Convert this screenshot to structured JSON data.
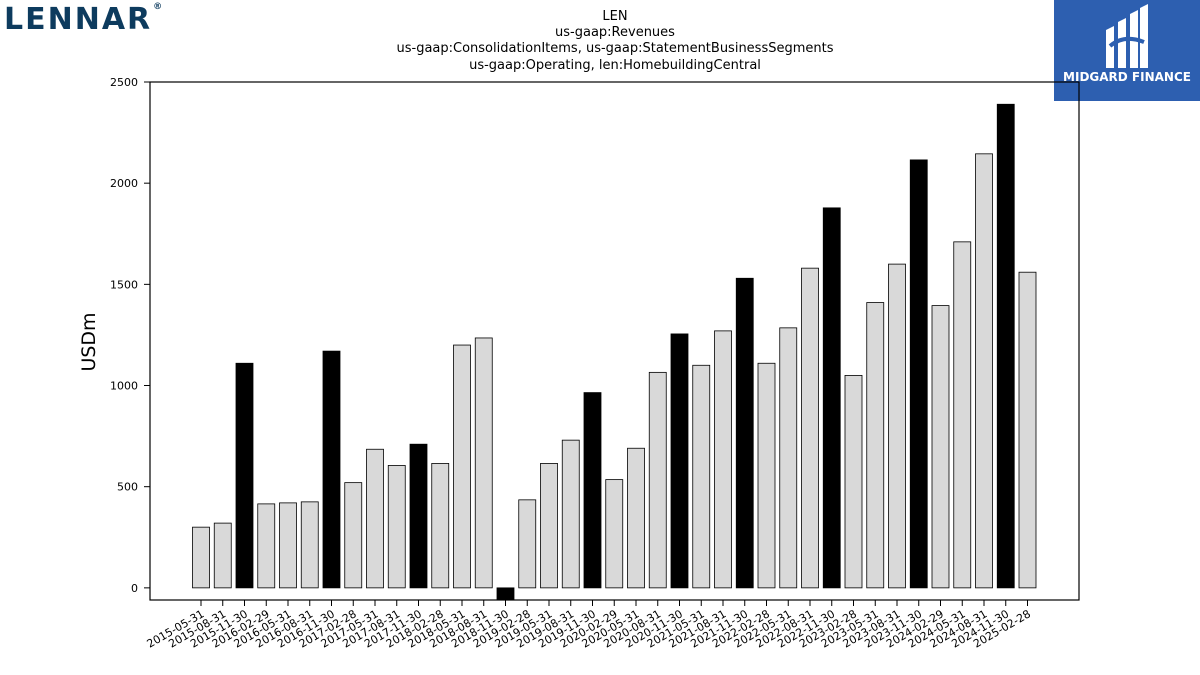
{
  "logos": {
    "left_text": "LENNAR",
    "left_mark": "®",
    "right_text": "MIDGARD FINANCE"
  },
  "chart_data": {
    "type": "bar",
    "title_lines": [
      "LEN",
      "us-gaap:Revenues",
      "us-gaap:ConsolidationItems, us-gaap:StatementBusinessSegments",
      "us-gaap:Operating, len:HomebuildingCentral"
    ],
    "xlabel": "",
    "ylabel": "USDm",
    "ylim": [
      -60,
      2500
    ],
    "yticks": [
      0,
      500,
      1000,
      1500,
      2000,
      2500
    ],
    "grid": false,
    "legend": "none",
    "colors": {
      "default": "#d9d9d9",
      "highlight": "#000000",
      "edge": "#000000"
    },
    "categories": [
      "2015-05-31",
      "2015-08-31",
      "2015-11-30",
      "2016-02-29",
      "2016-05-31",
      "2016-08-31",
      "2016-11-30",
      "2017-02-28",
      "2017-05-31",
      "2017-08-31",
      "2017-11-30",
      "2018-02-28",
      "2018-05-31",
      "2018-08-31",
      "2018-11-30",
      "2019-02-28",
      "2019-05-31",
      "2019-08-31",
      "2019-11-30",
      "2020-02-29",
      "2020-05-31",
      "2020-08-31",
      "2020-11-30",
      "2021-05-31",
      "2021-08-31",
      "2021-11-30",
      "2022-02-28",
      "2022-05-31",
      "2022-08-31",
      "2022-11-30",
      "2023-02-28",
      "2023-05-31",
      "2023-08-31",
      "2023-11-30",
      "2024-02-29",
      "2024-05-31",
      "2024-08-31",
      "2024-11-30",
      "2025-02-28"
    ],
    "values": [
      300,
      320,
      1110,
      415,
      420,
      425,
      1170,
      520,
      685,
      605,
      710,
      615,
      1200,
      1235,
      -60,
      435,
      615,
      730,
      965,
      535,
      690,
      1065,
      1255,
      1100,
      1270,
      1530,
      1110,
      1285,
      1580,
      1878,
      1050,
      1410,
      1600,
      2115,
      1395,
      1710,
      2145,
      2390,
      1560
    ],
    "highlight": [
      false,
      false,
      true,
      false,
      false,
      false,
      true,
      false,
      false,
      false,
      true,
      false,
      false,
      false,
      true,
      false,
      false,
      false,
      true,
      false,
      false,
      false,
      true,
      false,
      false,
      true,
      false,
      false,
      false,
      true,
      false,
      false,
      false,
      true,
      false,
      false,
      false,
      true,
      false
    ]
  }
}
